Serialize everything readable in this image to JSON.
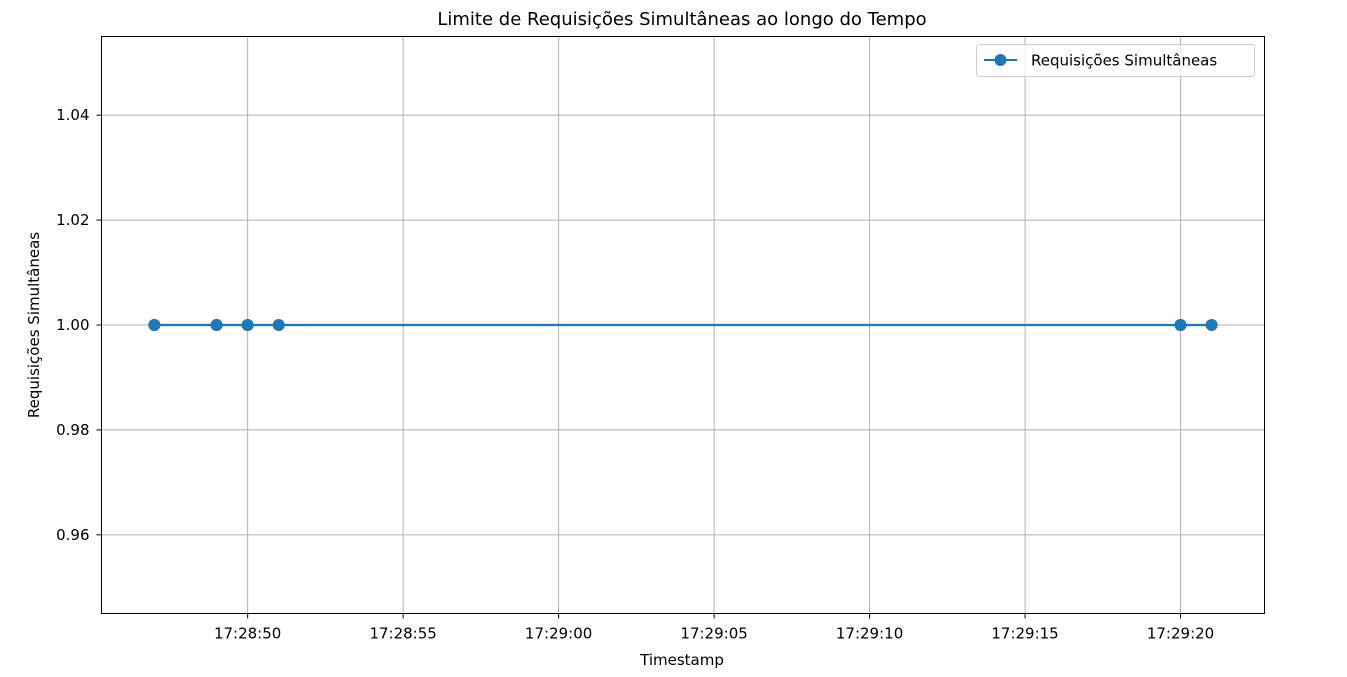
{
  "chart_data": {
    "type": "line",
    "title": "Limite de Requisições Simultâneas ao longo do Tempo",
    "xlabel": "Timestamp",
    "ylabel": "Requisições Simultâneas",
    "x_ticks": [
      "17:28:50",
      "17:28:55",
      "17:29:00",
      "17:29:05",
      "17:29:10",
      "17:29:15",
      "17:29:20"
    ],
    "y_ticks": [
      "0.96",
      "0.98",
      "1.00",
      "1.02",
      "1.04"
    ],
    "xlim": [
      "17:28:45.3",
      "17:29:22.7"
    ],
    "ylim": [
      0.945,
      1.055
    ],
    "grid": true,
    "legend_position": "top-right",
    "series": [
      {
        "name": "Requisições Simultâneas",
        "color": "#1f77b4",
        "marker": "circle",
        "x": [
          "17:28:47",
          "17:28:47",
          "17:28:49",
          "17:28:49",
          "17:28:50",
          "17:28:50",
          "17:28:51",
          "17:29:20",
          "17:29:20",
          "17:29:21"
        ],
        "y": [
          1,
          1,
          1,
          1,
          1,
          1,
          1,
          1,
          1,
          1
        ]
      }
    ]
  }
}
